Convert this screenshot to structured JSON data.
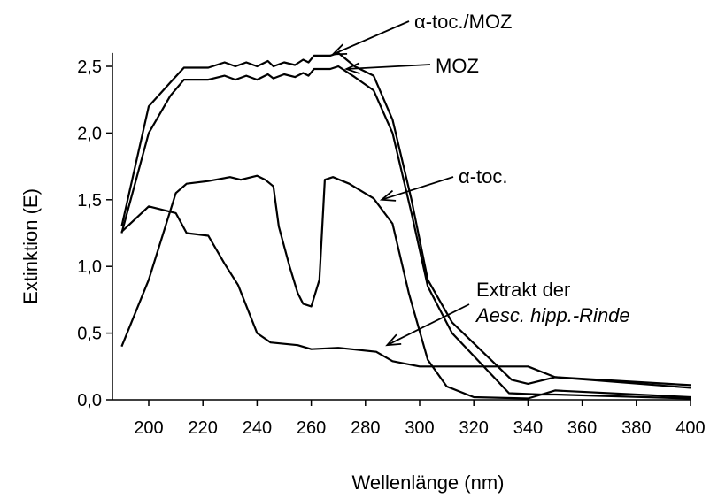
{
  "chart_data": {
    "type": "line",
    "xlabel": "Wellenlänge (nm)",
    "ylabel": "Extinktion (E)",
    "xlim": [
      190,
      400
    ],
    "ylim": [
      0,
      2.6
    ],
    "x_ticks": [
      200,
      220,
      240,
      260,
      280,
      300,
      320,
      340,
      360,
      380,
      400
    ],
    "x_tick_labels": [
      "200",
      "220",
      "240",
      "260",
      "280",
      "300",
      "320",
      "340",
      "360",
      "380",
      "400"
    ],
    "y_ticks": [
      0,
      0.5,
      1.0,
      1.5,
      2.0,
      2.5
    ],
    "y_tick_labels": [
      "0,0",
      "0,5",
      "1,0",
      "1,5",
      "2,0",
      "2,5"
    ],
    "grid": false,
    "series": [
      {
        "name": "α-toc./MOZ",
        "points": [
          [
            190,
            1.3
          ],
          [
            200,
            2.2
          ],
          [
            208,
            2.38
          ],
          [
            213,
            2.49
          ],
          [
            222,
            2.49
          ],
          [
            228,
            2.53
          ],
          [
            232,
            2.5
          ],
          [
            236,
            2.53
          ],
          [
            240,
            2.5
          ],
          [
            244,
            2.54
          ],
          [
            246,
            2.5
          ],
          [
            250,
            2.53
          ],
          [
            254,
            2.51
          ],
          [
            257,
            2.55
          ],
          [
            259,
            2.53
          ],
          [
            261,
            2.58
          ],
          [
            265,
            2.58
          ],
          [
            267,
            2.58
          ],
          [
            270,
            2.6
          ],
          [
            276,
            2.5
          ],
          [
            283,
            2.43
          ],
          [
            290,
            2.1
          ],
          [
            297,
            1.5
          ],
          [
            303,
            0.9
          ],
          [
            312,
            0.58
          ],
          [
            334,
            0.15
          ],
          [
            340,
            0.12
          ],
          [
            350,
            0.17
          ],
          [
            400,
            0.11
          ]
        ]
      },
      {
        "name": "MOZ",
        "points": [
          [
            190,
            1.25
          ],
          [
            200,
            2.0
          ],
          [
            208,
            2.28
          ],
          [
            213,
            2.4
          ],
          [
            222,
            2.4
          ],
          [
            228,
            2.43
          ],
          [
            232,
            2.4
          ],
          [
            236,
            2.43
          ],
          [
            240,
            2.4
          ],
          [
            244,
            2.44
          ],
          [
            246,
            2.41
          ],
          [
            250,
            2.44
          ],
          [
            254,
            2.42
          ],
          [
            257,
            2.45
          ],
          [
            259,
            2.43
          ],
          [
            261,
            2.48
          ],
          [
            267,
            2.48
          ],
          [
            270,
            2.5
          ],
          [
            276,
            2.42
          ],
          [
            283,
            2.32
          ],
          [
            290,
            2.0
          ],
          [
            297,
            1.4
          ],
          [
            303,
            0.85
          ],
          [
            312,
            0.5
          ],
          [
            333,
            0.05
          ],
          [
            345,
            0.04
          ],
          [
            350,
            0.04
          ],
          [
            400,
            0.01
          ]
        ]
      },
      {
        "name": "α-toc.",
        "points": [
          [
            190,
            0.4
          ],
          [
            200,
            0.9
          ],
          [
            210,
            1.55
          ],
          [
            214,
            1.62
          ],
          [
            222,
            1.64
          ],
          [
            230,
            1.67
          ],
          [
            234,
            1.65
          ],
          [
            240,
            1.68
          ],
          [
            243,
            1.65
          ],
          [
            246,
            1.6
          ],
          [
            248,
            1.3
          ],
          [
            252,
            1.0
          ],
          [
            255,
            0.8
          ],
          [
            257,
            0.72
          ],
          [
            260,
            0.7
          ],
          [
            263,
            0.9
          ],
          [
            265,
            1.65
          ],
          [
            268,
            1.67
          ],
          [
            274,
            1.62
          ],
          [
            283,
            1.51
          ],
          [
            290,
            1.32
          ],
          [
            296,
            0.8
          ],
          [
            303,
            0.3
          ],
          [
            310,
            0.1
          ],
          [
            320,
            0.02
          ],
          [
            340,
            0.01
          ],
          [
            350,
            0.07
          ],
          [
            400,
            0.02
          ]
        ]
      },
      {
        "name": "Extrakt der Aesc. hipp.-Rinde",
        "points": [
          [
            190,
            1.26
          ],
          [
            200,
            1.45
          ],
          [
            210,
            1.4
          ],
          [
            214,
            1.25
          ],
          [
            222,
            1.23
          ],
          [
            228,
            1.02
          ],
          [
            233,
            0.86
          ],
          [
            240,
            0.5
          ],
          [
            245,
            0.43
          ],
          [
            250,
            0.42
          ],
          [
            255,
            0.41
          ],
          [
            260,
            0.38
          ],
          [
            270,
            0.39
          ],
          [
            284,
            0.36
          ],
          [
            290,
            0.29
          ],
          [
            300,
            0.25
          ],
          [
            330,
            0.25
          ],
          [
            340,
            0.25
          ],
          [
            350,
            0.17
          ],
          [
            400,
            0.09
          ]
        ]
      }
    ],
    "annotations": [
      {
        "text": "α-toc./MOZ",
        "target": [
          268,
          2.59
        ]
      },
      {
        "text": "MOZ",
        "target": [
          273,
          2.48
        ]
      },
      {
        "text": "α-toc.",
        "target": [
          286,
          1.5
        ]
      },
      {
        "text": "Extrakt der",
        "text2": "Aesc. hipp.-Rinde",
        "target": [
          288,
          0.41
        ]
      }
    ]
  }
}
